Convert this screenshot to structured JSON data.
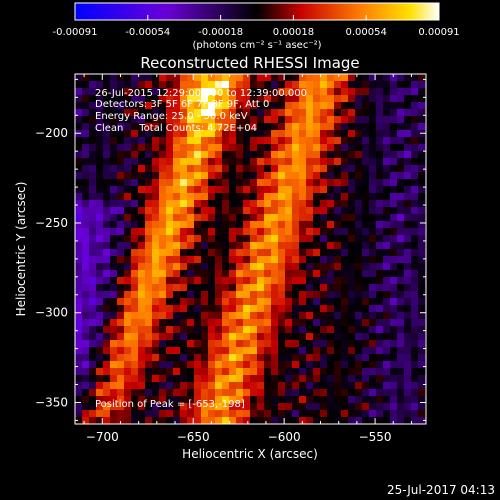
{
  "colorbar": {
    "ticks": [
      "-0.00091",
      "-0.00054",
      "-0.00018",
      "0.00018",
      "0.00054",
      "0.00091"
    ],
    "units": "(photons cm⁻² s⁻¹ asec⁻²)"
  },
  "chart_data": {
    "type": "heatmap",
    "title": "Reconstructed RHESSI Image",
    "xlabel": "Heliocentric X (arcsec)",
    "ylabel": "Heliocentric Y (arcsec)",
    "xlim": [
      -715,
      -522
    ],
    "ylim": [
      -362,
      -167
    ],
    "xticks": [
      -700,
      -650,
      -600,
      -550
    ],
    "yticks": [
      -200,
      -250,
      -300,
      -350
    ],
    "color_range": [
      -0.00091,
      0.00091
    ],
    "colormap": "blue-purple-black-red-orange-yellow-white",
    "peak": [
      -653,
      -198
    ],
    "annotations": [
      "26-Jul-2015 12:29:00.000 to 12:39:00.000",
      "Detectors: 3F 5F 6F 7F 8F 9F, Att 0",
      "Energy Range: 25.0 - 50.0 keV",
      "Clean     Total Counts: 4.72E+04",
      "Position of Peak = [-653,-198]"
    ]
  },
  "footer": {
    "timestamp": "25-Jul-2017 04:13"
  },
  "colors": {
    "axis": "#ffffff",
    "background": "#000000"
  }
}
